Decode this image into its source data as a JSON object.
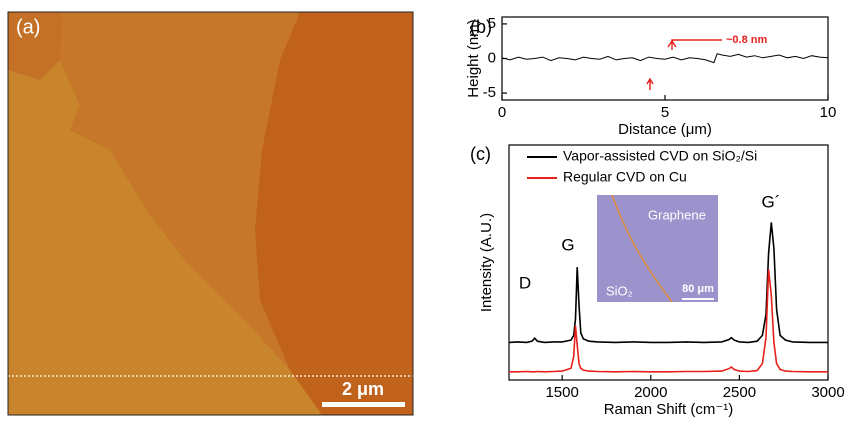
{
  "chart_data": [
    {
      "type": "image",
      "panel_label": "(a)",
      "scale_bar_label": "2 μm"
    },
    {
      "type": "line",
      "panel_label": "(b)",
      "xlabel": "Distance (μm)",
      "ylabel": "Height (nm)",
      "x": [
        0,
        0.25,
        0.5,
        0.75,
        1,
        1.25,
        1.5,
        1.75,
        2,
        2.25,
        2.5,
        2.75,
        3,
        3.25,
        3.5,
        3.75,
        4,
        4.25,
        4.5,
        4.75,
        5,
        5.25,
        5.5,
        5.75,
        6,
        6.25,
        6.5,
        6.6,
        6.75,
        7,
        7.25,
        7.5,
        7.75,
        8,
        8.25,
        8.5,
        8.75,
        9,
        9.25,
        9.5,
        9.75,
        10
      ],
      "values": [
        0.1,
        -0.2,
        0.2,
        -0.1,
        0,
        0.2,
        -0.3,
        0.1,
        0,
        -0.2,
        0.2,
        0,
        -0.1,
        0.3,
        -0.2,
        0,
        0.1,
        -0.3,
        0.2,
        0,
        -0.1,
        0.2,
        -0.2,
        0.1,
        0,
        -0.2,
        -0.6,
        0.7,
        0.5,
        0.3,
        0.6,
        0.2,
        0.4,
        0.1,
        0.3,
        0.5,
        0.1,
        0.3,
        0,
        0.4,
        0.2,
        0.1
      ],
      "color": "#000000",
      "annotation": "~0.8 nm",
      "annotation_color": "#e8201c",
      "xlim": [
        0,
        10
      ],
      "xticks": [
        0,
        5,
        10
      ],
      "ylim": [
        -6,
        6
      ],
      "yticks": [
        -5,
        0,
        5
      ]
    },
    {
      "type": "line",
      "panel_label": "(c)",
      "xlabel": "Raman Shift (cm⁻¹)",
      "ylabel": "Intensity (A.U.)",
      "x": [
        1200,
        1250,
        1300,
        1330,
        1345,
        1360,
        1400,
        1450,
        1500,
        1550,
        1565,
        1575,
        1585,
        1595,
        1605,
        1620,
        1650,
        1700,
        1800,
        1900,
        2000,
        2100,
        2200,
        2300,
        2400,
        2440,
        2455,
        2470,
        2500,
        2550,
        2600,
        2630,
        2650,
        2665,
        2680,
        2695,
        2710,
        2730,
        2760,
        2800,
        2900,
        3000
      ],
      "series": [
        {
          "name": "Vapor-assisted CVD on SiO₂/Si",
          "color": "#000000",
          "values": [
            1.6,
            1.62,
            1.6,
            1.65,
            1.78,
            1.65,
            1.6,
            1.62,
            1.62,
            1.7,
            1.9,
            2.6,
            4.8,
            3.2,
            2.0,
            1.75,
            1.65,
            1.62,
            1.6,
            1.62,
            1.6,
            1.6,
            1.62,
            1.6,
            1.62,
            1.72,
            1.8,
            1.7,
            1.62,
            1.6,
            1.65,
            1.9,
            2.8,
            5.4,
            6.7,
            5.6,
            3.0,
            1.9,
            1.7,
            1.62,
            1.6,
            1.6
          ]
        },
        {
          "name": "Regular CVD on Cu",
          "color": "#e8201c",
          "values": [
            0.35,
            0.35,
            0.36,
            0.35,
            0.35,
            0.36,
            0.35,
            0.36,
            0.38,
            0.5,
            1.0,
            2.3,
            1.5,
            0.7,
            0.5,
            0.42,
            0.38,
            0.36,
            0.35,
            0.36,
            0.35,
            0.35,
            0.36,
            0.36,
            0.38,
            0.48,
            0.55,
            0.45,
            0.38,
            0.36,
            0.4,
            0.7,
            1.8,
            4.7,
            3.6,
            1.6,
            0.7,
            0.45,
            0.38,
            0.36,
            0.35,
            0.35
          ]
        }
      ],
      "peak_labels": [
        "D",
        "G",
        "G´"
      ],
      "inset_labels": [
        "Graphene",
        "SiO₂",
        "80 μm"
      ],
      "xlim": [
        1200,
        3000
      ],
      "xticks": [
        1500,
        2000,
        2500,
        3000
      ],
      "ylim": [
        0,
        10
      ]
    }
  ]
}
